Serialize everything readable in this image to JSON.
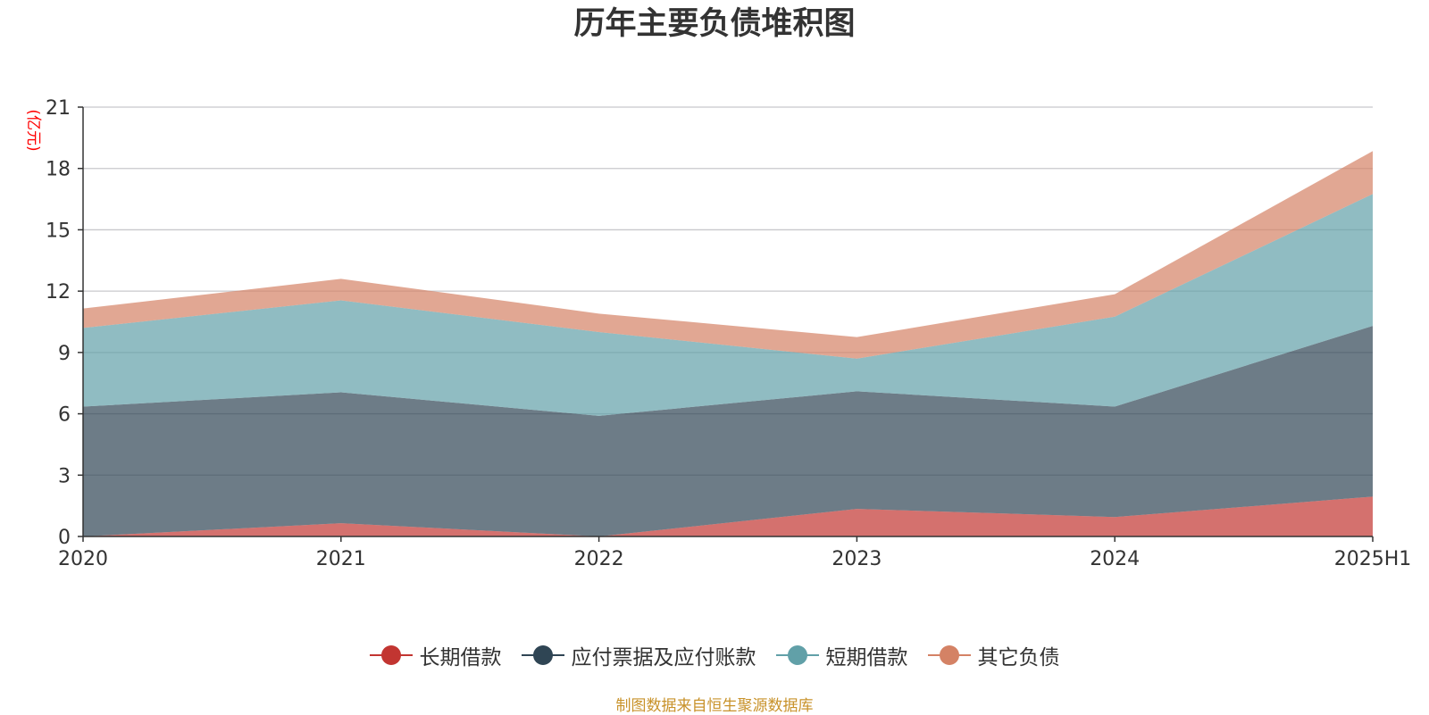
{
  "title": "历年主要负债堆积图",
  "source": "制图数据来自恒生聚源数据库",
  "chart_data": {
    "type": "area",
    "stacked": true,
    "title": "历年主要负债堆积图",
    "ylabel": "(亿元)",
    "xlabel": "",
    "categories": [
      "2020",
      "2021",
      "2022",
      "2023",
      "2024",
      "2025H1"
    ],
    "ylim": [
      0,
      21
    ],
    "yticks": [
      0,
      3,
      6,
      9,
      12,
      15,
      18,
      21
    ],
    "grid": true,
    "legend_position": "bottom",
    "series": [
      {
        "name": "长期借款",
        "values": [
          0.0,
          0.65,
          0.0,
          1.35,
          0.95,
          1.95
        ],
        "color": "#c23531"
      },
      {
        "name": "应付票据及应付账款",
        "values": [
          6.35,
          6.4,
          5.9,
          5.75,
          5.4,
          8.35
        ],
        "color": "#2f4554"
      },
      {
        "name": "短期借款",
        "values": [
          3.85,
          4.5,
          4.1,
          1.6,
          4.4,
          6.45
        ],
        "color": "#61a0a8"
      },
      {
        "name": "其它负债",
        "values": [
          0.95,
          1.05,
          0.9,
          1.05,
          1.1,
          2.1
        ],
        "color": "#d48265"
      }
    ]
  }
}
